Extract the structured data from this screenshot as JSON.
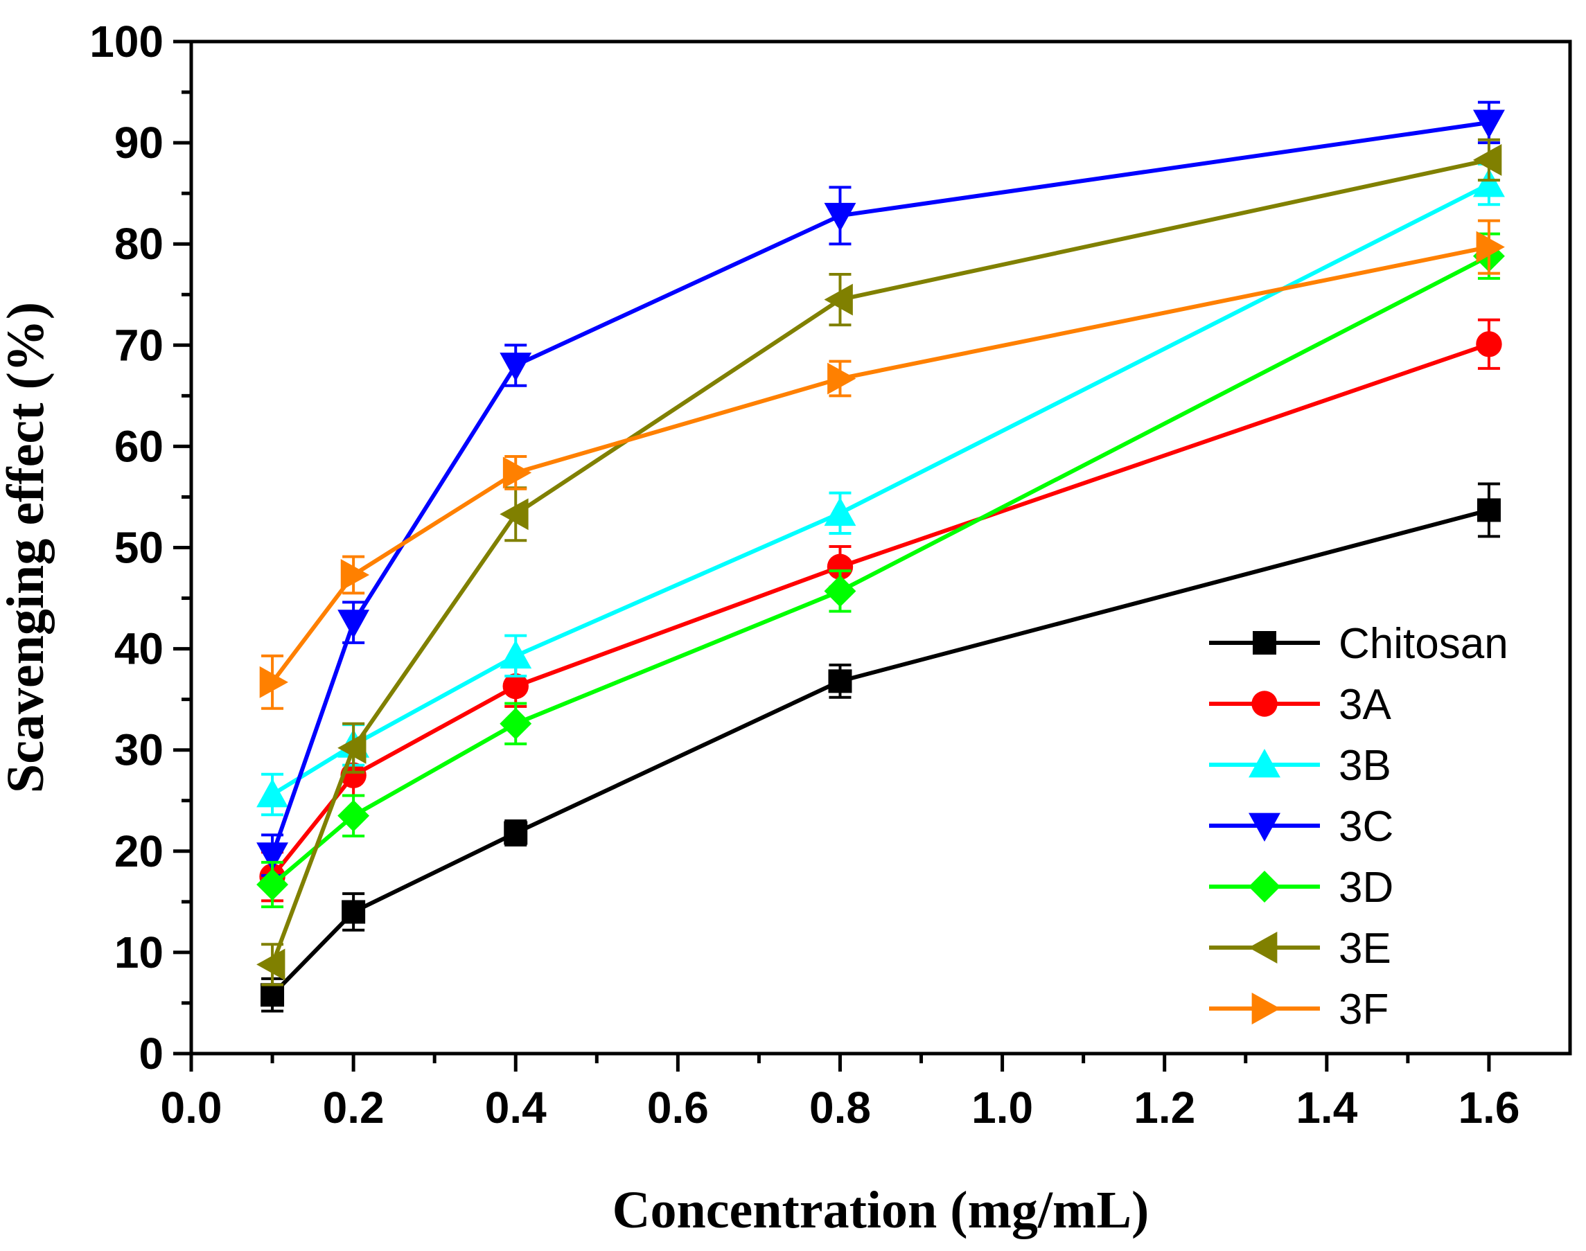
{
  "chart_data": {
    "type": "line",
    "title": "",
    "xlabel": "Concentration (mg/mL)",
    "ylabel": "Scavenging effect (%)",
    "xlim": [
      0.0,
      1.7
    ],
    "ylim": [
      0,
      100
    ],
    "xticks": [
      0.0,
      0.2,
      0.4,
      0.6,
      0.8,
      1.0,
      1.2,
      1.4,
      1.6
    ],
    "xtick_labels": [
      "0.0",
      "0.2",
      "0.4",
      "0.6",
      "0.8",
      "1.0",
      "1.2",
      "1.4",
      "1.6"
    ],
    "yticks": [
      0,
      10,
      20,
      30,
      40,
      50,
      60,
      70,
      80,
      90,
      100
    ],
    "ytick_labels": [
      "0",
      "10",
      "20",
      "30",
      "40",
      "50",
      "60",
      "70",
      "80",
      "90",
      "100"
    ],
    "legend_position": "right",
    "grid": false,
    "x": [
      0.1,
      0.2,
      0.4,
      0.8,
      1.6
    ],
    "series": [
      {
        "name": "Chitosan",
        "color": "#000000",
        "marker": "square",
        "values": [
          5.8,
          14.0,
          21.8,
          36.8,
          53.7
        ],
        "errors": [
          1.6,
          1.8,
          1.2,
          1.6,
          2.6
        ]
      },
      {
        "name": "3A",
        "color": "#ff0000",
        "marker": "circle",
        "values": [
          17.5,
          27.5,
          36.3,
          48.1,
          70.1
        ],
        "errors": [
          2.4,
          2.0,
          2.0,
          2.0,
          2.4
        ]
      },
      {
        "name": "3B",
        "color": "#00ffff",
        "marker": "triangle-up",
        "values": [
          25.6,
          30.5,
          39.3,
          53.4,
          85.9
        ],
        "errors": [
          2.0,
          2.0,
          2.0,
          2.0,
          2.0
        ]
      },
      {
        "name": "3C",
        "color": "#0000ff",
        "marker": "triangle-down",
        "values": [
          19.6,
          42.6,
          68.0,
          82.8,
          92.0
        ],
        "errors": [
          2.0,
          2.0,
          2.0,
          2.8,
          2.0
        ]
      },
      {
        "name": "3D",
        "color": "#00ff00",
        "marker": "diamond",
        "values": [
          16.7,
          23.5,
          32.6,
          45.7,
          78.8
        ],
        "errors": [
          2.2,
          2.0,
          2.0,
          2.0,
          2.2
        ]
      },
      {
        "name": "3E",
        "color": "#808000",
        "marker": "triangle-left",
        "values": [
          8.8,
          30.2,
          53.3,
          74.5,
          88.3
        ],
        "errors": [
          2.0,
          2.4,
          2.6,
          2.5,
          2.0
        ]
      },
      {
        "name": "3F",
        "color": "#ff8000",
        "marker": "triangle-right",
        "values": [
          36.7,
          47.3,
          57.4,
          66.7,
          79.7
        ],
        "errors": [
          2.6,
          1.8,
          1.6,
          1.7,
          2.6
        ]
      }
    ]
  }
}
